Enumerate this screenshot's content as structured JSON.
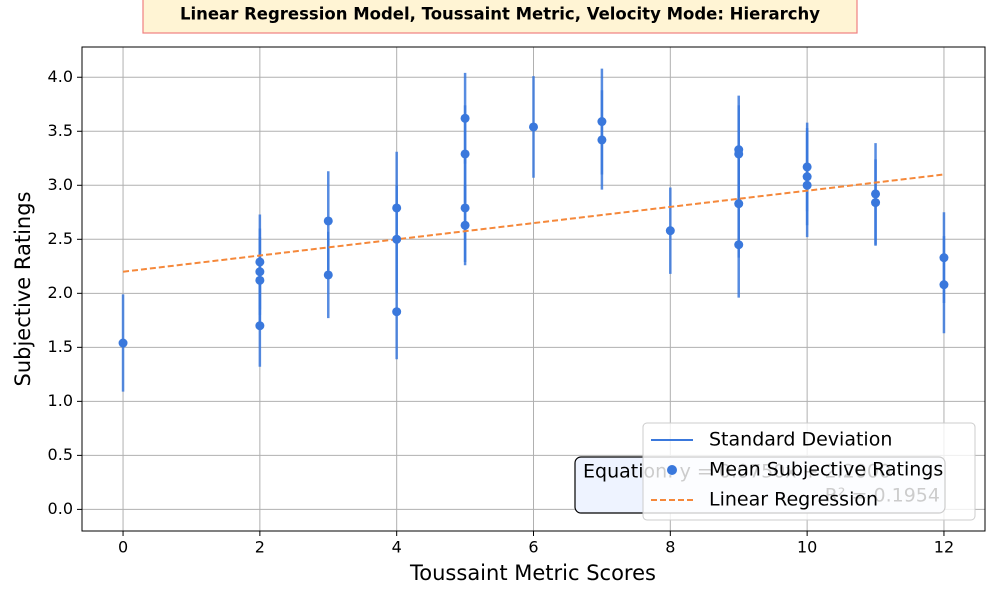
{
  "chart_data": {
    "type": "scatter",
    "title": "Linear Regression Model, Toussaint Metric, Velocity Mode: Hierarchy",
    "xlabel": "Toussaint Metric Scores",
    "ylabel": "Subjective Ratings",
    "xlim": [
      -0.6,
      12.6
    ],
    "ylim": [
      -0.2,
      4.28
    ],
    "xticks": [
      0,
      2,
      4,
      6,
      8,
      10,
      12
    ],
    "yticks": [
      {
        "value": 0,
        "label": "0.0"
      },
      {
        "value": 0.5,
        "label": "0.5"
      },
      {
        "value": 1,
        "label": "1.0"
      },
      {
        "value": 1.5,
        "label": "1.5"
      },
      {
        "value": 2,
        "label": "2.0"
      },
      {
        "value": 2.5,
        "label": "2.5"
      },
      {
        "value": 3,
        "label": "3.0"
      },
      {
        "value": 3.5,
        "label": "3.5"
      },
      {
        "value": 4,
        "label": "4.0"
      }
    ],
    "grid": true,
    "legend": "lower right",
    "points": {
      "name": "Mean Subjective Ratings",
      "color": "#3a78dc",
      "x": [
        0,
        2,
        2,
        2,
        2,
        3,
        3,
        4,
        4,
        4,
        5,
        5,
        5,
        5,
        6,
        7,
        7,
        8,
        9,
        9,
        9,
        9,
        10,
        10,
        10,
        11,
        11,
        12,
        12
      ],
      "values": [
        1.54,
        2.29,
        2.2,
        2.12,
        1.7,
        2.67,
        2.17,
        2.79,
        2.5,
        1.83,
        3.62,
        3.29,
        2.79,
        2.63,
        3.54,
        3.59,
        3.42,
        2.58,
        3.33,
        3.29,
        2.83,
        2.45,
        3.17,
        3.08,
        3.0,
        2.92,
        2.84,
        2.33,
        2.08
      ]
    },
    "error_bars": {
      "name": "Standard Deviation",
      "color": "#3a78dc",
      "values": [
        0.45,
        0.44,
        0.4,
        0.4,
        0.38,
        0.46,
        0.4,
        0.52,
        0.5,
        0.44,
        0.42,
        0.45,
        0.5,
        0.37,
        0.47,
        0.49,
        0.46,
        0.4,
        0.5,
        0.45,
        0.5,
        0.49,
        0.41,
        0.45,
        0.48,
        0.47,
        0.4,
        0.42,
        0.45
      ]
    },
    "regression": {
      "name": "Linear Regression",
      "color": "#f5883a",
      "x": [
        0,
        12
      ],
      "values": [
        2.2,
        3.1
      ],
      "equation": "Equation: y = 0.0750x + 2.2000",
      "r2": "R² = 0.1954"
    }
  }
}
